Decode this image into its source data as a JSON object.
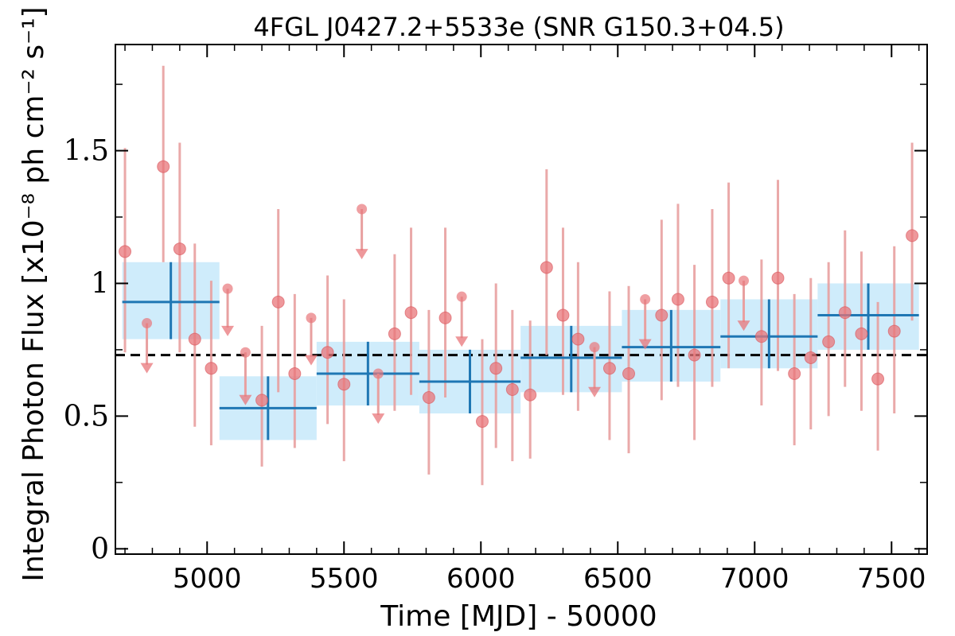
{
  "chart_data": {
    "type": "scatter",
    "title": "4FGL J0427.2+5533e (SNR G150.3+04.5)",
    "xlabel": "Time [MJD] - 50000",
    "ylabel": "Integral Photon Flux [x10⁻⁸ ph cm⁻² s⁻¹]",
    "xlim": [
      4665,
      7630
    ],
    "ylim": [
      -0.02,
      1.9
    ],
    "xticks": [
      5000,
      5500,
      6000,
      6500,
      7000,
      7500
    ],
    "xtick_labels": [
      "5000",
      "5500",
      "6000",
      "6500",
      "7000",
      "7500"
    ],
    "yticks": [
      0,
      0.5,
      1,
      1.5
    ],
    "ytick_labels": [
      "0",
      "0.5",
      "1",
      "1.5"
    ],
    "grid": false,
    "mean_flux": 0.73,
    "colors": {
      "points": "#e8767a",
      "errorbars": "#e8a0a0",
      "bands": "#cfecfb",
      "bins": "#1f77b4",
      "mean_line": "#000000"
    },
    "series": [
      {
        "kind": "measurements",
        "points": [
          {
            "x": 4700,
            "y": 1.12,
            "lo": 0.74,
            "hi": 1.51
          },
          {
            "x": 4840,
            "y": 1.44,
            "lo": 1.08,
            "hi": 1.82
          },
          {
            "x": 4900,
            "y": 1.13,
            "lo": 0.74,
            "hi": 1.53
          },
          {
            "x": 4955,
            "y": 0.79,
            "lo": 0.46,
            "hi": 1.15
          },
          {
            "x": 5015,
            "y": 0.68,
            "lo": 0.39,
            "hi": 1.01
          },
          {
            "x": 5200,
            "y": 0.56,
            "lo": 0.31,
            "hi": 0.84
          },
          {
            "x": 5260,
            "y": 0.93,
            "lo": 0.59,
            "hi": 1.28
          },
          {
            "x": 5320,
            "y": 0.66,
            "lo": 0.38,
            "hi": 0.96
          },
          {
            "x": 5440,
            "y": 0.74,
            "lo": 0.47,
            "hi": 1.03
          },
          {
            "x": 5500,
            "y": 0.62,
            "lo": 0.33,
            "hi": 0.94
          },
          {
            "x": 5685,
            "y": 0.81,
            "lo": 0.52,
            "hi": 1.11
          },
          {
            "x": 5745,
            "y": 0.89,
            "lo": 0.58,
            "hi": 1.21
          },
          {
            "x": 5810,
            "y": 0.57,
            "lo": 0.28,
            "hi": 0.9
          },
          {
            "x": 5870,
            "y": 0.87,
            "lo": 0.57,
            "hi": 1.21
          },
          {
            "x": 6005,
            "y": 0.48,
            "lo": 0.24,
            "hi": 0.79
          },
          {
            "x": 6055,
            "y": 0.68,
            "lo": 0.38,
            "hi": 1.0
          },
          {
            "x": 6115,
            "y": 0.6,
            "lo": 0.33,
            "hi": 0.9
          },
          {
            "x": 6180,
            "y": 0.58,
            "lo": 0.34,
            "hi": 0.86
          },
          {
            "x": 6240,
            "y": 1.06,
            "lo": 0.73,
            "hi": 1.43
          },
          {
            "x": 6300,
            "y": 0.88,
            "lo": 0.58,
            "hi": 1.21
          },
          {
            "x": 6355,
            "y": 0.79,
            "lo": 0.52,
            "hi": 1.08
          },
          {
            "x": 6470,
            "y": 0.68,
            "lo": 0.41,
            "hi": 0.97
          },
          {
            "x": 6540,
            "y": 0.66,
            "lo": 0.36,
            "hi": 0.99
          },
          {
            "x": 6660,
            "y": 0.88,
            "lo": 0.56,
            "hi": 1.24
          },
          {
            "x": 6720,
            "y": 0.94,
            "lo": 0.61,
            "hi": 1.3
          },
          {
            "x": 6780,
            "y": 0.73,
            "lo": 0.41,
            "hi": 1.07
          },
          {
            "x": 6845,
            "y": 0.93,
            "lo": 0.61,
            "hi": 1.28
          },
          {
            "x": 6905,
            "y": 1.02,
            "lo": 0.68,
            "hi": 1.38
          },
          {
            "x": 7025,
            "y": 0.8,
            "lo": 0.54,
            "hi": 1.09
          },
          {
            "x": 7085,
            "y": 1.02,
            "lo": 0.67,
            "hi": 1.39
          },
          {
            "x": 7145,
            "y": 0.66,
            "lo": 0.39,
            "hi": 0.96
          },
          {
            "x": 7205,
            "y": 0.72,
            "lo": 0.45,
            "hi": 1.02
          },
          {
            "x": 7270,
            "y": 0.78,
            "lo": 0.5,
            "hi": 1.08
          },
          {
            "x": 7330,
            "y": 0.89,
            "lo": 0.61,
            "hi": 1.2
          },
          {
            "x": 7390,
            "y": 0.81,
            "lo": 0.52,
            "hi": 1.12
          },
          {
            "x": 7450,
            "y": 0.64,
            "lo": 0.37,
            "hi": 0.93
          },
          {
            "x": 7510,
            "y": 0.82,
            "lo": 0.51,
            "hi": 1.14
          },
          {
            "x": 7575,
            "y": 1.18,
            "lo": 0.86,
            "hi": 1.53
          }
        ]
      },
      {
        "kind": "upper_limits",
        "points": [
          {
            "x": 4780,
            "y": 0.85,
            "arrow_to": 0.67
          },
          {
            "x": 5075,
            "y": 0.98,
            "arrow_to": 0.81
          },
          {
            "x": 5140,
            "y": 0.74,
            "arrow_to": 0.55
          },
          {
            "x": 5380,
            "y": 0.87,
            "arrow_to": 0.7
          },
          {
            "x": 5565,
            "y": 1.28,
            "arrow_to": 1.1
          },
          {
            "x": 5625,
            "y": 0.66,
            "arrow_to": 0.48
          },
          {
            "x": 5930,
            "y": 0.95,
            "arrow_to": 0.77
          },
          {
            "x": 6415,
            "y": 0.76,
            "arrow_to": 0.58
          },
          {
            "x": 6600,
            "y": 0.94,
            "arrow_to": 0.76
          },
          {
            "x": 6960,
            "y": 1.01,
            "arrow_to": 0.83
          }
        ]
      },
      {
        "kind": "binned",
        "bins": [
          {
            "x0": 4690,
            "x1": 5045,
            "y": 0.93,
            "lo": 0.79,
            "hi": 1.08
          },
          {
            "x0": 5045,
            "x1": 5400,
            "y": 0.53,
            "lo": 0.41,
            "hi": 0.65
          },
          {
            "x0": 5400,
            "x1": 5775,
            "y": 0.66,
            "lo": 0.54,
            "hi": 0.78
          },
          {
            "x0": 5775,
            "x1": 6145,
            "y": 0.63,
            "lo": 0.51,
            "hi": 0.75
          },
          {
            "x0": 6145,
            "x1": 6515,
            "y": 0.72,
            "lo": 0.59,
            "hi": 0.84
          },
          {
            "x0": 6515,
            "x1": 6875,
            "y": 0.76,
            "lo": 0.63,
            "hi": 0.9
          },
          {
            "x0": 6875,
            "x1": 7230,
            "y": 0.8,
            "lo": 0.68,
            "hi": 0.94
          },
          {
            "x0": 7230,
            "x1": 7600,
            "y": 0.88,
            "lo": 0.75,
            "hi": 1.0
          }
        ]
      }
    ]
  }
}
